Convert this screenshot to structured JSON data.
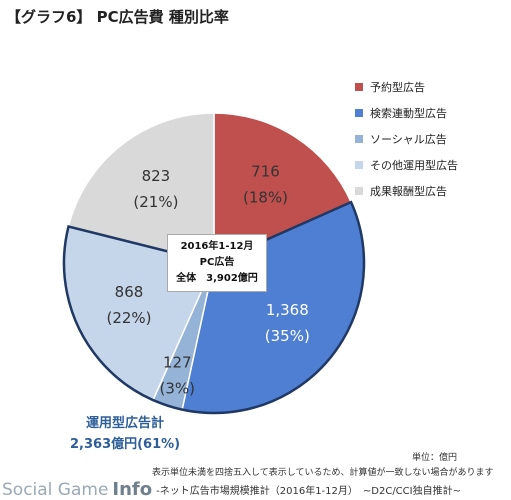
{
  "title": "【グラフ6】 PC広告費 種別比率",
  "chart_data": {
    "type": "pie",
    "total_label": {
      "line1": "2016年1-12月",
      "line2": "PC広告",
      "line3": "全体　3,902億円"
    },
    "slices": [
      {
        "name": "予約型広告",
        "value": 716,
        "value_label": "716",
        "pct_label": "(18%)",
        "color": "#c0504d"
      },
      {
        "name": "検索連動型広告",
        "value": 1368,
        "value_label": "1,368",
        "pct_label": "(35%)",
        "color": "#4f7fd2"
      },
      {
        "name": "ソーシャル広告",
        "value": 127,
        "value_label": "127",
        "pct_label": "(3%)",
        "color": "#95b3d7"
      },
      {
        "name": "その他運用型広告",
        "value": 868,
        "value_label": "868",
        "pct_label": "(22%)",
        "color": "#c5d5ea"
      },
      {
        "name": "成果報酬型広告",
        "value": 823,
        "value_label": "823",
        "pct_label": "(21%)",
        "color": "#d9d9d9"
      }
    ],
    "group_outline": {
      "slices": [
        1,
        2,
        3
      ],
      "label_line1": "運用型広告計",
      "label_line2": "2,363億円(61%)",
      "color": "#1f3864"
    }
  },
  "unit": "単位：億円",
  "note": "表示単位未満を四捨五入して表示しているため、計算値が一致しない場合があります",
  "footer": {
    "watermark_social": "Social Game",
    "watermark_info": "Info",
    "source": "-ネット広告市場規模推計（2016年1-12月）　~D2C/CCI独自推計~"
  }
}
